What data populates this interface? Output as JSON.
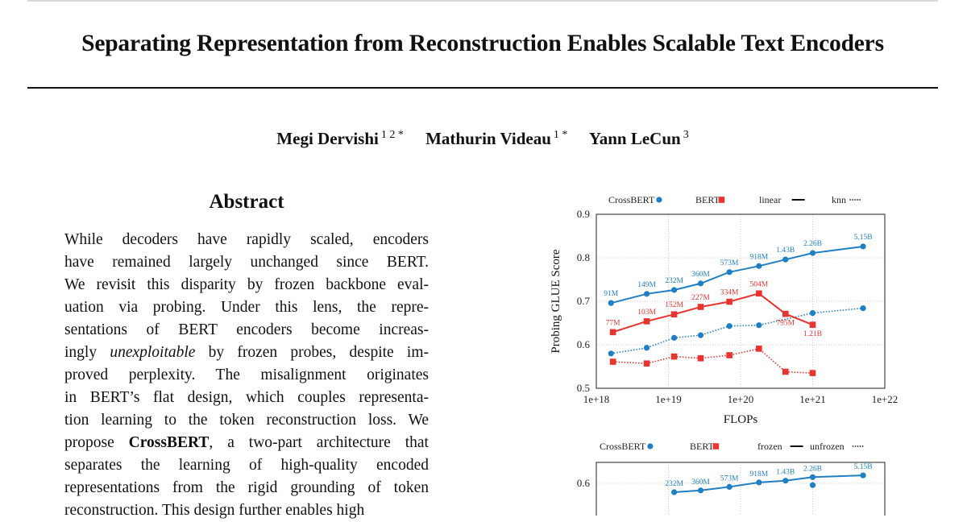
{
  "paper": {
    "title": "Separating Representation from Reconstruction Enables Scalable Text Encoders",
    "authors": [
      {
        "name": "Megi Dervishi",
        "affil": "1 2 *"
      },
      {
        "name": "Mathurin Videau",
        "affil": "1 *"
      },
      {
        "name": "Yann LeCun",
        "affil": "3"
      }
    ],
    "abstract_heading": "Abstract",
    "abstract_lines": [
      "While decoders have rapidly scaled, encoders",
      "have remained largely unchanged since BERT.",
      "We revisit this disparity by frozen backbone eval-",
      "uation via probing.  Under this lens, the repre-",
      "sentations of BERT encoders become increas-",
      "ingly |unexploitable| by frozen probes, despite im-",
      "proved perplexity.  The misalignment originates",
      "in BERT’s flat design, which couples representa-",
      "tion learning to the token reconstruction loss. We",
      "propose |CrossBERT|, a two-part architecture that",
      "separates the learning of high-quality encoded",
      "representations from the rigid grounding of token",
      "reconstruction.  This design further enables high"
    ]
  },
  "colors": {
    "crossbert": "#1f7fc4",
    "bert": "#e8332f"
  },
  "chart_data": [
    {
      "type": "line",
      "title": "",
      "xlabel": "FLOPs",
      "ylabel": "Probing GLUE Score",
      "x_scale": "log",
      "xlim": [
        1e+18,
        1e+22
      ],
      "ylim": [
        0.5,
        0.9
      ],
      "xticks": [
        "1e+18",
        "1e+19",
        "1e+20",
        "1e+21",
        "1e+22"
      ],
      "yticks": [
        "0.5",
        "0.6",
        "0.7",
        "0.8",
        "0.9"
      ],
      "grid": true,
      "legend": [
        {
          "label": "CrossBERT",
          "symbol": "circle",
          "color": "#1f7fc4"
        },
        {
          "label": "BERT",
          "symbol": "square",
          "color": "#e8332f"
        },
        {
          "label": "linear",
          "symbol": "solid-line",
          "color": "#111111"
        },
        {
          "label": "knn",
          "symbol": "dotted-line",
          "color": "#111111"
        }
      ],
      "legend_position": "top",
      "series": [
        {
          "name": "CrossBERT",
          "probe": "linear",
          "style": "solid",
          "marker": "circle",
          "color": "#1f7fc4",
          "x": [
            1.6e+18,
            5e+18,
            1.2e+19,
            2.8e+19,
            7e+19,
            1.8e+20,
            4.2e+20,
            1e+21,
            5e+21
          ],
          "y": [
            0.696,
            0.717,
            0.726,
            0.741,
            0.767,
            0.781,
            0.796,
            0.811,
            0.826
          ],
          "labels": [
            "91M",
            "149M",
            "232M",
            "360M",
            "573M",
            "918M",
            "1.43B",
            "2.26B",
            "5.15B"
          ]
        },
        {
          "name": "CrossBERT",
          "probe": "knn",
          "style": "dotted",
          "marker": "circle",
          "color": "#1f7fc4",
          "x": [
            1.6e+18,
            5e+18,
            1.2e+19,
            2.8e+19,
            7e+19,
            1.8e+20,
            1e+21,
            5e+21
          ],
          "y": [
            0.58,
            0.593,
            0.616,
            0.622,
            0.643,
            0.645,
            0.673,
            0.684
          ],
          "labels": []
        },
        {
          "name": "BERT",
          "probe": "linear",
          "style": "solid",
          "marker": "square",
          "color": "#e8332f",
          "x": [
            1.7e+18,
            5e+18,
            1.2e+19,
            2.8e+19,
            7e+19,
            1.8e+20,
            4.2e+20,
            1e+21
          ],
          "y": [
            0.629,
            0.654,
            0.67,
            0.687,
            0.699,
            0.718,
            0.671,
            0.646
          ],
          "labels": [
            "77M",
            "103M",
            "152M",
            "227M",
            "334M",
            "504M",
            "795M",
            "1.21B"
          ]
        },
        {
          "name": "BERT",
          "probe": "knn",
          "style": "dotted",
          "marker": "square",
          "color": "#e8332f",
          "x": [
            1.7e+18,
            5e+18,
            1.2e+19,
            2.8e+19,
            7e+19,
            1.8e+20,
            4.2e+20,
            1e+21
          ],
          "y": [
            0.561,
            0.557,
            0.573,
            0.569,
            0.576,
            0.591,
            0.538,
            0.535
          ],
          "labels": []
        }
      ]
    },
    {
      "type": "line",
      "title": "",
      "xlabel": "",
      "ylabel": "",
      "x_scale": "log",
      "xlim": [
        1e+18,
        1e+22
      ],
      "yticks": [
        "0.6"
      ],
      "grid": true,
      "legend": [
        {
          "label": "CrossBERT",
          "symbol": "circle",
          "color": "#1f7fc4"
        },
        {
          "label": "BERT",
          "symbol": "square",
          "color": "#e8332f"
        },
        {
          "label": "frozen",
          "symbol": "solid-line",
          "color": "#111111"
        },
        {
          "label": "unfrozen",
          "symbol": "dotted-line",
          "color": "#111111"
        }
      ],
      "legend_position": "top",
      "series": [
        {
          "name": "CrossBERT",
          "style": "solid",
          "marker": "circle",
          "color": "#1f7fc4",
          "x": [
            1.2e+19,
            2.8e+19,
            7e+19,
            1.8e+20,
            4.2e+20,
            1e+21,
            5e+21
          ],
          "y": [
            0.59,
            0.592,
            0.596,
            0.601,
            0.603,
            0.607,
            0.609
          ],
          "labels": [
            "232M",
            "360M",
            "573M",
            "918M",
            "1.43B",
            "2.26B",
            "5.15B"
          ]
        },
        {
          "name": "CrossBERT",
          "style": "dotted",
          "marker": "circle",
          "color": "#1f7fc4",
          "x": [
            1e+21
          ],
          "y": [
            0.598
          ],
          "labels": []
        }
      ]
    }
  ]
}
